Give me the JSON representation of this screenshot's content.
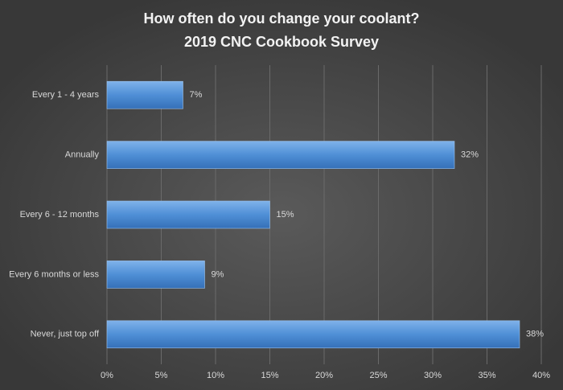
{
  "chart_data": {
    "type": "bar",
    "orientation": "horizontal",
    "title": "How often do you change your coolant?",
    "subtitle": "2019 CNC Cookbook Survey",
    "categories": [
      "Every 1 - 4 years",
      "Annually",
      "Every 6 - 12 months",
      "Every 6 months or less",
      "Never, just top off"
    ],
    "values": [
      7,
      32,
      15,
      9,
      38
    ],
    "value_labels": [
      "7%",
      "32%",
      "15%",
      "9%",
      "38%"
    ],
    "color": "#4f8fd6",
    "xlim": [
      0,
      40
    ],
    "xticks": [
      {
        "value": 0,
        "label": "0%"
      },
      {
        "value": 5,
        "label": "5%"
      },
      {
        "value": 10,
        "label": "10%"
      },
      {
        "value": 15,
        "label": "15%"
      },
      {
        "value": 20,
        "label": "20%"
      },
      {
        "value": 25,
        "label": "25%"
      },
      {
        "value": 30,
        "label": "30%"
      },
      {
        "value": 35,
        "label": "35%"
      },
      {
        "value": 40,
        "label": "40%"
      }
    ],
    "grid": true
  }
}
